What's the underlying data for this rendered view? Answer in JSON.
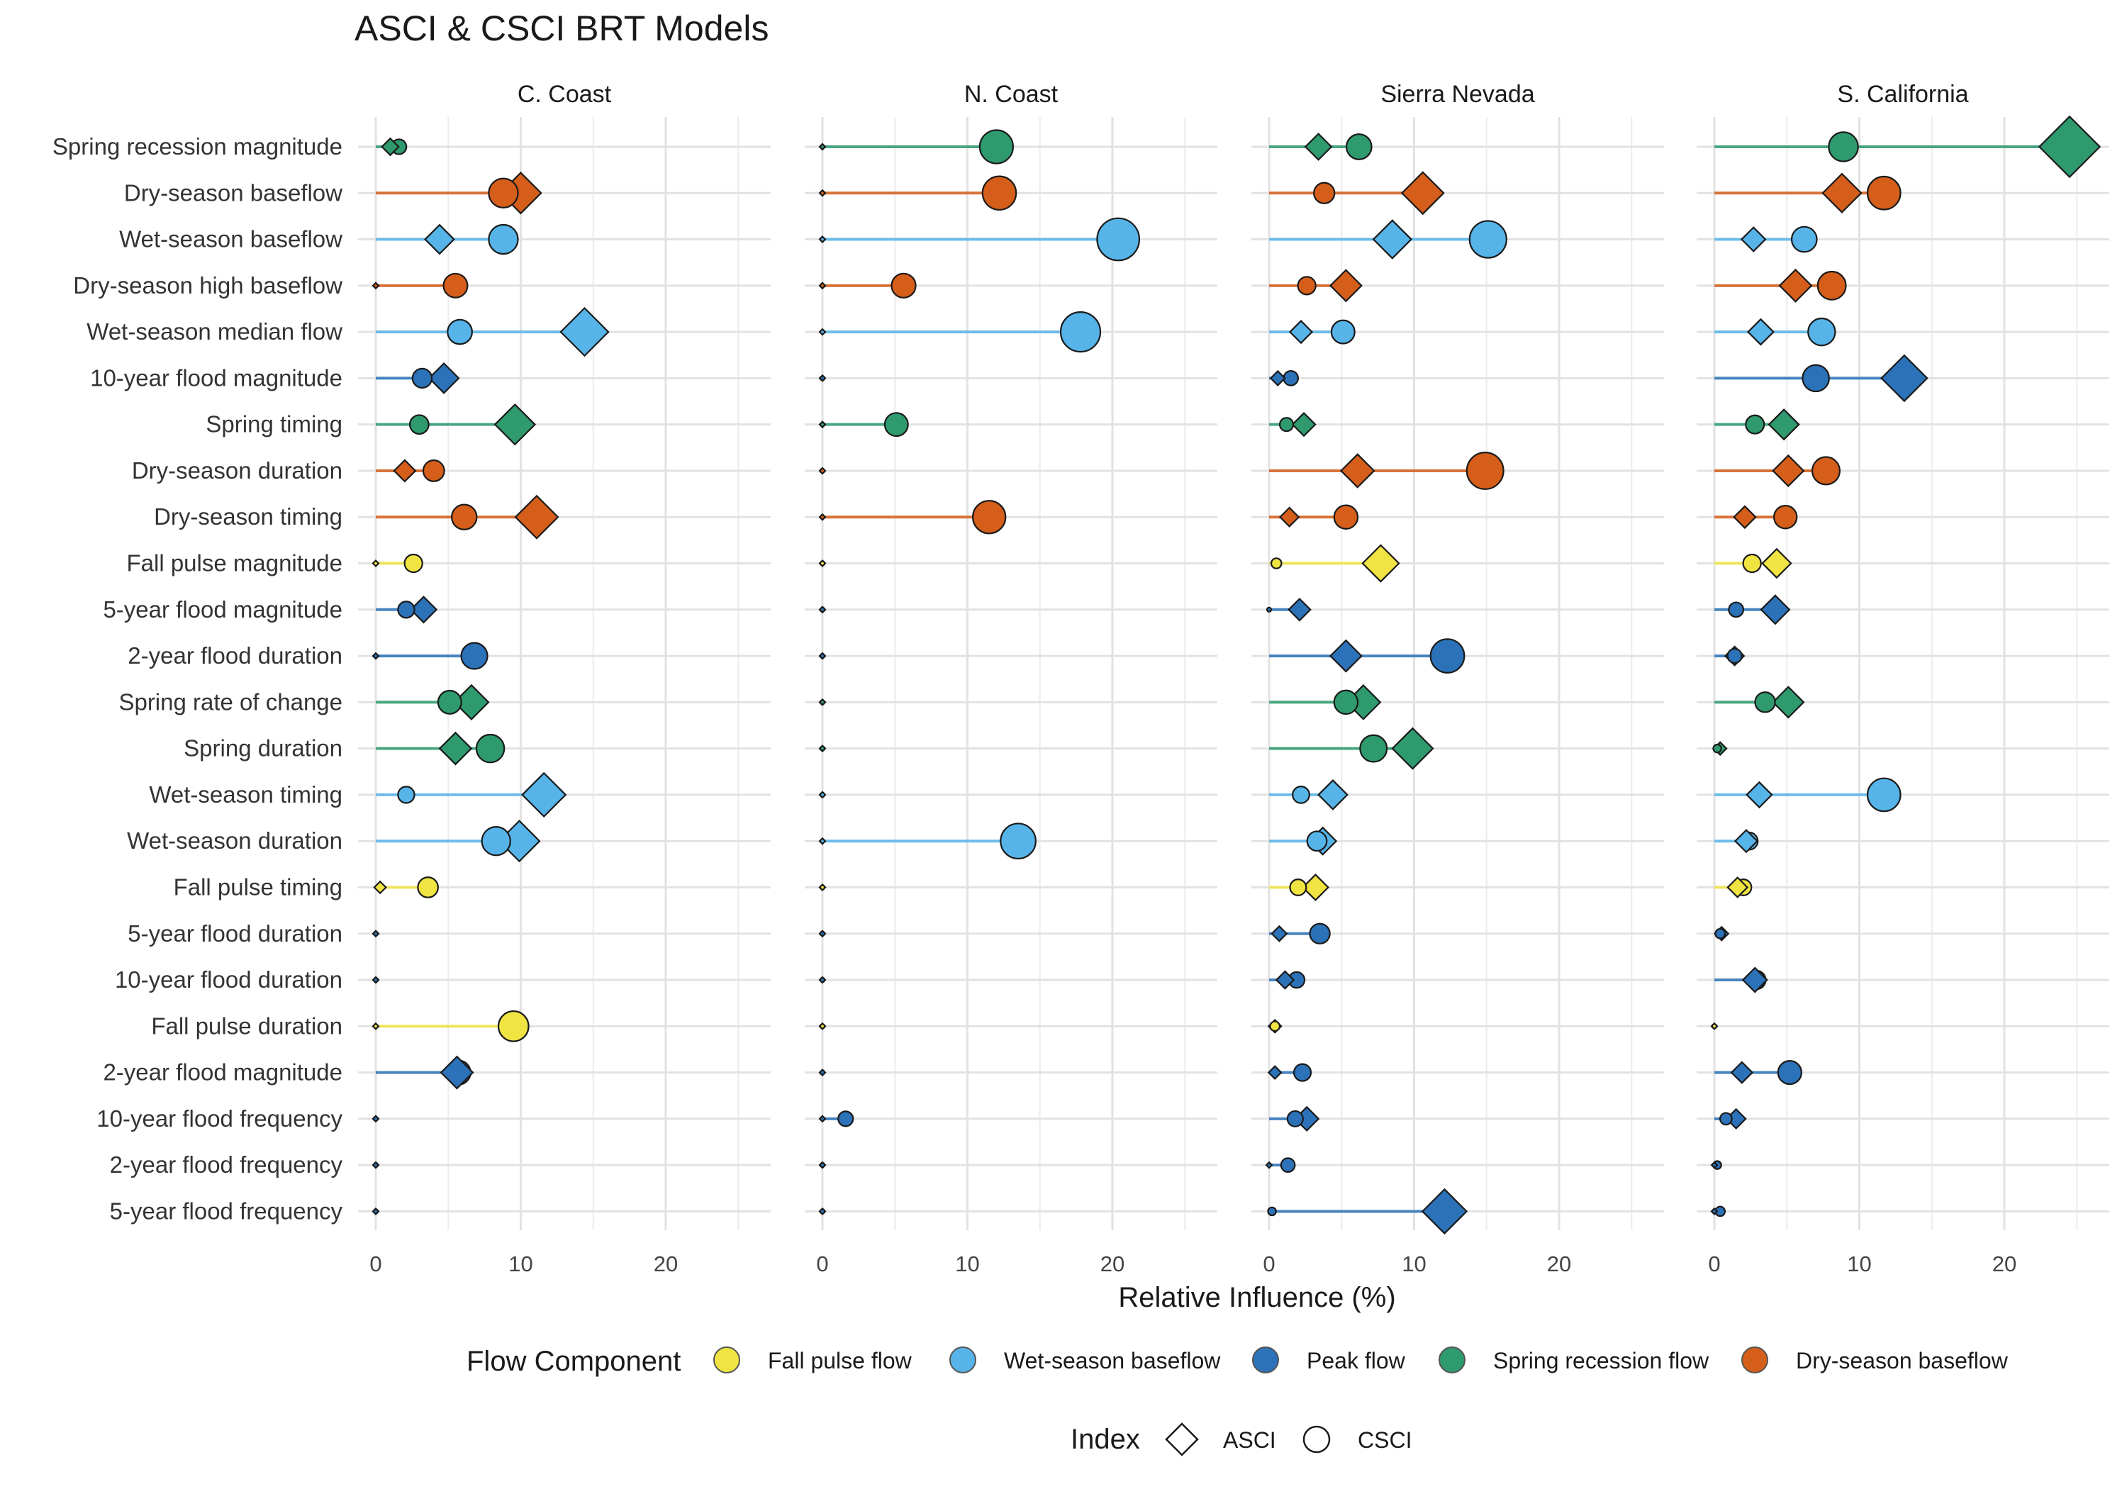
{
  "chart_data": {
    "type": "scatter",
    "title": "ASCI & CSCI BRT Models",
    "xlabel": "Relative Influence (%)",
    "xlim": [
      -1.2,
      28.5
    ],
    "xticks": [
      0,
      10,
      20
    ],
    "legend_position": "bottom",
    "legend": {
      "color_title": "Flow Component",
      "components": [
        {
          "key": "fall",
          "label": "Fall pulse flow",
          "color": "#F0E442"
        },
        {
          "key": "wet",
          "label": "Wet-season baseflow",
          "color": "#56B4E9"
        },
        {
          "key": "peak",
          "label": "Peak flow",
          "color": "#2C72B8"
        },
        {
          "key": "spring",
          "label": "Spring recession flow",
          "color": "#2E9A6E"
        },
        {
          "key": "dry",
          "label": "Dry-season baseflow",
          "color": "#D55E1A"
        }
      ],
      "shape_title": "Index",
      "shapes": [
        {
          "key": "ASCI",
          "label": "ASCI",
          "shape": "diamond"
        },
        {
          "key": "CSCI",
          "label": "CSCI",
          "shape": "circle"
        }
      ]
    },
    "categories": [
      "Spring recession magnitude",
      "Dry-season baseflow",
      "Wet-season baseflow",
      "Dry-season high baseflow",
      "Wet-season median flow",
      "10-year flood magnitude",
      "Spring timing",
      "Dry-season duration",
      "Dry-season timing",
      "Fall pulse magnitude",
      "5-year flood magnitude",
      "2-year flood duration",
      "Spring rate of change",
      "Spring duration",
      "Wet-season timing",
      "Wet-season duration",
      "Fall pulse timing",
      "5-year flood duration",
      "10-year flood duration",
      "Fall pulse duration",
      "2-year flood magnitude",
      "10-year flood frequency",
      "2-year flood frequency",
      "5-year flood frequency"
    ],
    "category_component": [
      "spring",
      "dry",
      "wet",
      "dry",
      "wet",
      "peak",
      "spring",
      "dry",
      "dry",
      "fall",
      "peak",
      "peak",
      "spring",
      "spring",
      "wet",
      "wet",
      "fall",
      "peak",
      "peak",
      "fall",
      "peak",
      "peak",
      "peak",
      "peak"
    ],
    "panels": [
      {
        "name": "C. Coast",
        "asci": [
          1.0,
          10.0,
          4.4,
          0.0,
          14.4,
          4.7,
          9.6,
          2.0,
          11.1,
          0.0,
          3.3,
          0.0,
          6.6,
          5.5,
          11.6,
          9.9,
          0.3,
          0.0,
          0.0,
          0.0,
          5.6,
          0.0,
          0.0,
          0.0
        ],
        "csci": [
          1.6,
          8.8,
          8.8,
          5.5,
          5.8,
          3.2,
          3.0,
          4.0,
          6.1,
          2.6,
          2.1,
          6.8,
          5.1,
          7.9,
          2.1,
          8.3,
          3.6,
          0.0,
          0.0,
          9.5,
          5.7,
          0.0,
          0.0,
          0.0
        ]
      },
      {
        "name": "N. Coast",
        "asci": [
          0,
          0,
          0,
          0,
          0,
          0,
          0,
          0,
          0,
          0,
          0,
          0,
          0,
          0,
          0,
          0,
          0,
          0,
          0,
          0,
          0,
          0,
          0,
          0
        ],
        "csci": [
          12.0,
          12.2,
          20.4,
          5.6,
          17.8,
          0.0,
          5.1,
          0.0,
          11.5,
          0.0,
          0.0,
          0.0,
          0.0,
          0.0,
          0.0,
          13.5,
          0.0,
          0.0,
          0.0,
          0.0,
          0.0,
          1.6,
          0.0,
          0.0
        ]
      },
      {
        "name": "Sierra Nevada",
        "asci": [
          3.4,
          10.6,
          8.5,
          5.3,
          2.2,
          0.6,
          2.4,
          6.1,
          1.4,
          7.7,
          2.1,
          5.3,
          6.5,
          9.9,
          4.4,
          3.7,
          3.2,
          0.7,
          1.1,
          0.4,
          0.4,
          2.6,
          0.0,
          12.1
        ],
        "csci": [
          6.2,
          3.8,
          15.1,
          2.6,
          5.1,
          1.5,
          1.2,
          14.9,
          5.3,
          0.5,
          0.0,
          12.3,
          5.3,
          7.2,
          2.2,
          3.3,
          2.0,
          3.5,
          1.9,
          0.4,
          2.3,
          1.8,
          1.3,
          0.2
        ]
      },
      {
        "name": "S. California",
        "asci": [
          24.5,
          8.8,
          2.7,
          5.6,
          3.2,
          13.1,
          4.8,
          5.1,
          2.1,
          4.3,
          4.2,
          1.4,
          5.1,
          0.4,
          3.1,
          2.2,
          1.6,
          0.5,
          2.8,
          0.0,
          1.9,
          1.5,
          0.0,
          0.0
        ],
        "csci": [
          8.9,
          11.7,
          6.2,
          8.1,
          7.4,
          7.0,
          2.8,
          7.7,
          4.9,
          2.6,
          1.5,
          1.4,
          3.5,
          0.2,
          11.7,
          2.4,
          2.0,
          0.4,
          2.9,
          0.0,
          5.2,
          0.8,
          0.2,
          0.4
        ]
      }
    ]
  }
}
